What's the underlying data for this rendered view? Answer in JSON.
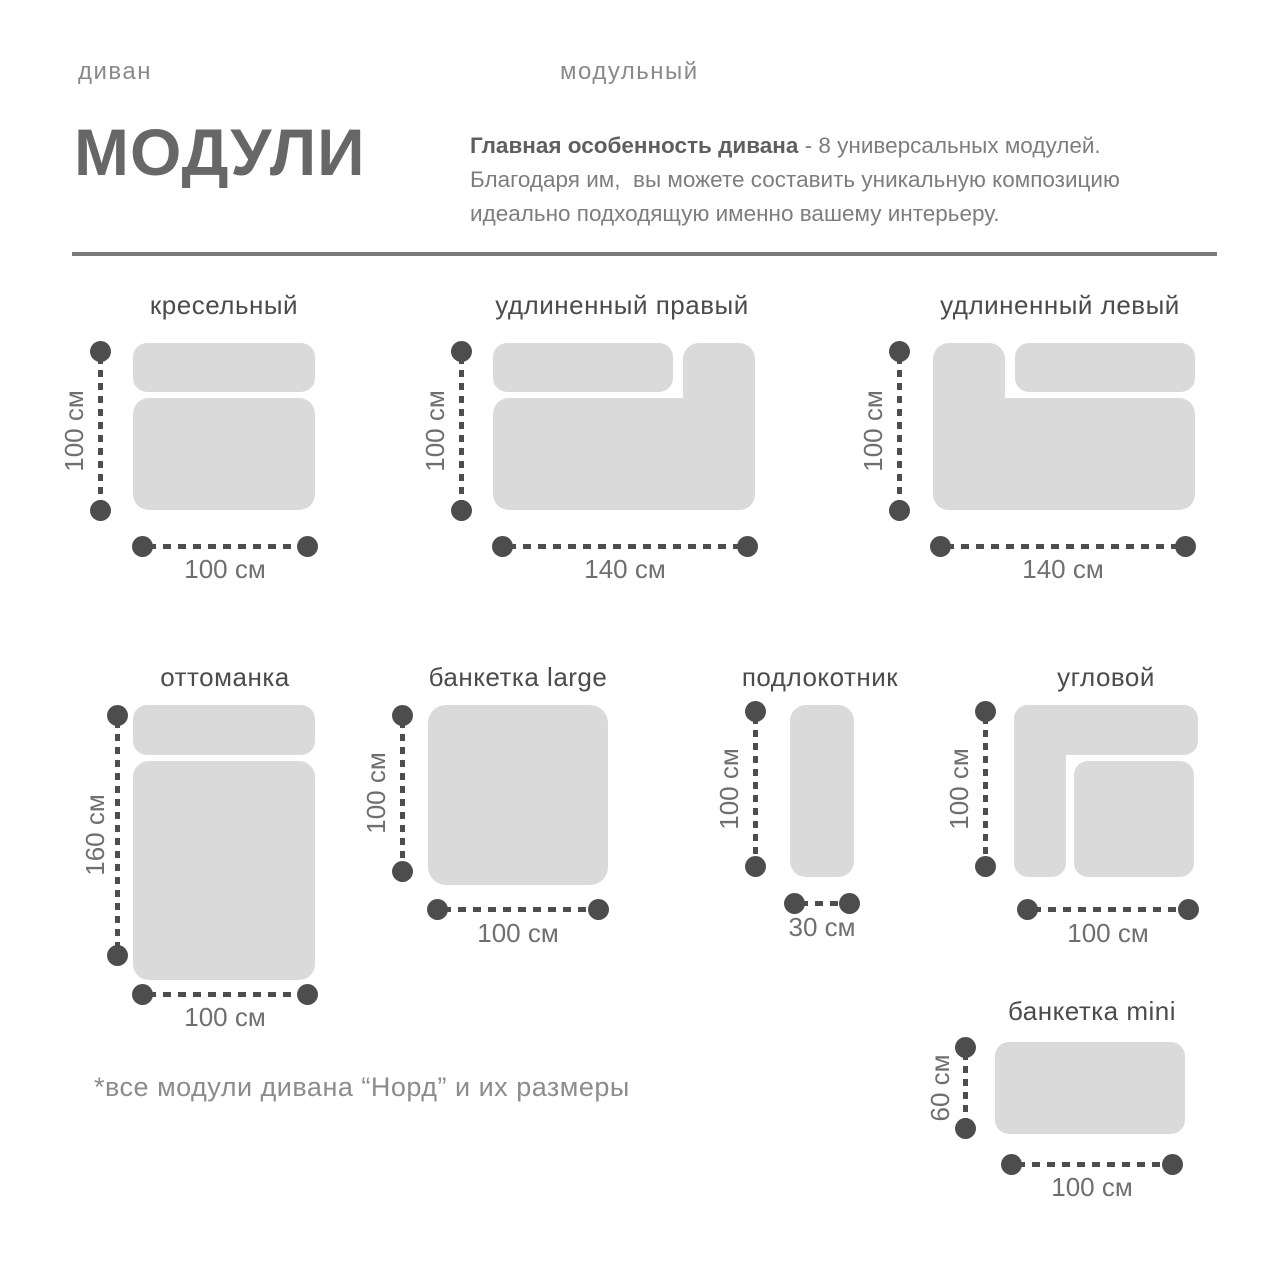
{
  "page": {
    "category_left": "диван",
    "category_right": "модульный",
    "title": "МОДУЛИ",
    "intro_lead": "Главная особенность дивана",
    "intro_rest": " - 8 универсальных модулей. Благодаря им,  вы можете составить уникальную композицию идеально подходящую именно вашему интерьеру.",
    "footnote": "*все модули дивана “Норд” и их размеры"
  },
  "colors": {
    "module_fill": "#dadada",
    "dimension_marks": "#4d4d4d",
    "dimension_text": "#6f6f6f",
    "module_title_text": "#4b4b4b"
  },
  "modules": [
    {
      "id": "armchair",
      "name": "кресельный",
      "shape": "armchair",
      "width": "100 см",
      "height": "100 см"
    },
    {
      "id": "extended-right",
      "name": "удлиненный правый",
      "shape": "extended-right",
      "width": "140 см",
      "height": "100 см"
    },
    {
      "id": "extended-left",
      "name": "удлиненный левый",
      "shape": "extended-left",
      "width": "140 см",
      "height": "100 см"
    },
    {
      "id": "ottoman",
      "name": "оттоманка",
      "shape": "ottoman",
      "width": "100 см",
      "height": "160 см"
    },
    {
      "id": "banquette-large",
      "name": "банкетка large",
      "shape": "banquette-large",
      "width": "100 см",
      "height": "100 см"
    },
    {
      "id": "armrest",
      "name": "подлокотник",
      "shape": "armrest",
      "width": "30 см",
      "height": "100 см"
    },
    {
      "id": "corner",
      "name": "угловой",
      "shape": "corner",
      "width": "100 см",
      "height": "100 см"
    },
    {
      "id": "banquette-mini",
      "name": "банкетка mini",
      "shape": "banquette-mini",
      "width": "100 см",
      "height": "60 см"
    }
  ]
}
